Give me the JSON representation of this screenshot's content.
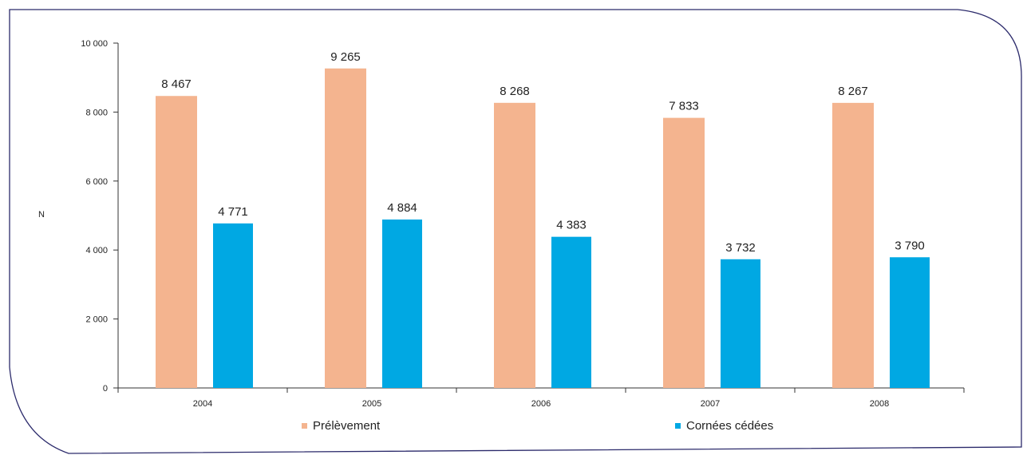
{
  "chart_data": {
    "type": "bar",
    "categories": [
      "2004",
      "2005",
      "2006",
      "2007",
      "2008"
    ],
    "series": [
      {
        "name": "Prélèvement",
        "values": [
          8467,
          9265,
          8268,
          7833,
          8267
        ],
        "color": "#F4B48F",
        "labels": [
          "8 467",
          "9 265",
          "8 268",
          "7 833",
          "8 267"
        ]
      },
      {
        "name": "Cornées cédées",
        "values": [
          4771,
          4884,
          4383,
          3732,
          3790
        ],
        "color": "#00A8E3",
        "labels": [
          "4 771",
          "4 884",
          "4 383",
          "3 732",
          "3 790"
        ]
      }
    ],
    "ylabel": "N",
    "ylim": [
      0,
      10000
    ],
    "yticks": [
      0,
      2000,
      4000,
      6000,
      8000,
      10000
    ],
    "ytick_labels": [
      "0",
      "2 000",
      "4 000",
      "6 000",
      "8 000",
      "10 000"
    ],
    "grid": false,
    "legend_position": "bottom"
  },
  "frame_color": "#2B2A6B"
}
